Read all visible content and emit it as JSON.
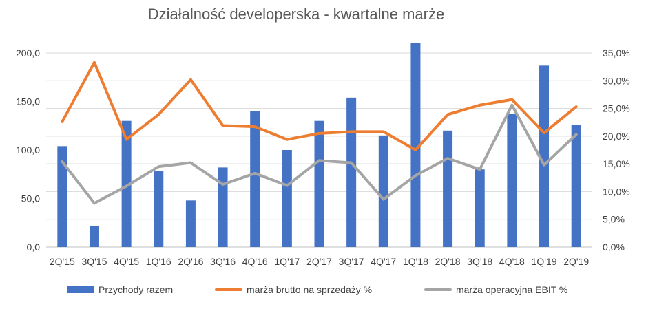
{
  "chart_data": {
    "type": "bar",
    "title": "Działalność developerska - kwartalne marże",
    "categories": [
      "2Q'15",
      "3Q'15",
      "4Q'15",
      "1Q'16",
      "2Q'16",
      "3Q'16",
      "4Q'16",
      "1Q'17",
      "2Q'17",
      "3Q'17",
      "4Q'17",
      "1Q'18",
      "2Q'18",
      "3Q'18",
      "4Q'18",
      "1Q'19",
      "2Q'19"
    ],
    "series": [
      {
        "name": "Przychody razem",
        "type": "bar",
        "axis": "left",
        "color": "#4472C4",
        "values": [
          104,
          22,
          130,
          78,
          48,
          82,
          140,
          100,
          130,
          154,
          115,
          210,
          120,
          80,
          137,
          187,
          126
        ]
      },
      {
        "name": "marża brutto na sprzedaży %",
        "type": "line",
        "axis": "right",
        "color": "#ED7D31",
        "values": [
          22.6,
          33.3,
          19.4,
          23.9,
          30.2,
          21.9,
          21.7,
          19.4,
          20.5,
          20.8,
          20.8,
          17.5,
          23.9,
          25.6,
          26.6,
          20.6,
          25.3
        ]
      },
      {
        "name": "marża operacyjna EBIT %",
        "type": "line",
        "axis": "right",
        "color": "#A5A5A5",
        "values": [
          15.4,
          7.9,
          11.0,
          14.5,
          15.2,
          11.3,
          13.3,
          11.1,
          15.6,
          15.2,
          8.6,
          12.9,
          16.0,
          14.0,
          25.6,
          14.8,
          20.3
        ]
      }
    ],
    "y_left": {
      "range": [
        0,
        200
      ],
      "ticks": [
        "0,0",
        "50,0",
        "100,0",
        "150,0",
        "200,0"
      ],
      "tick_values": [
        0,
        50,
        100,
        150,
        200
      ]
    },
    "y_right": {
      "range": [
        0,
        35
      ],
      "ticks": [
        "0,0%",
        "5,0%",
        "10,0%",
        "15,0%",
        "20,0%",
        "25,0%",
        "30,0%",
        "35,0%"
      ],
      "tick_values": [
        0,
        5,
        10,
        15,
        20,
        25,
        30,
        35
      ]
    },
    "grid": true,
    "legend_position": "bottom"
  }
}
